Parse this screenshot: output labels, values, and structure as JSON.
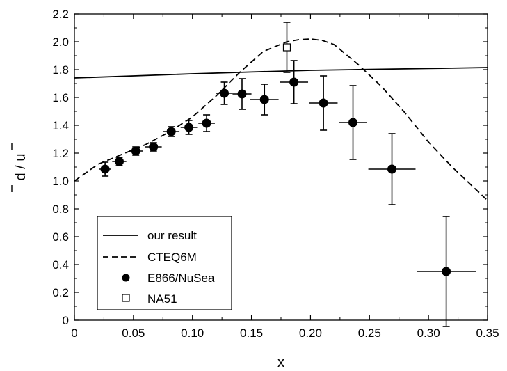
{
  "chart_data": {
    "type": "scatter",
    "xlabel": "x",
    "ylabel": "d / u",
    "xlim": [
      0,
      0.35
    ],
    "ylim": [
      0,
      2.2
    ],
    "x_ticks": [
      "0",
      "0.05",
      "0.10",
      "0.15",
      "0.20",
      "0.25",
      "0.30",
      "0.35"
    ],
    "y_ticks": [
      "0",
      "0.2",
      "0.4",
      "0.6",
      "0.8",
      "1.0",
      "1.2",
      "1.4",
      "1.6",
      "1.8",
      "2.0",
      "2.2"
    ],
    "legend_position": "bottom-left",
    "series": [
      {
        "name": "our result",
        "kind": "line",
        "style": "solid",
        "x": [
          0.0,
          0.05,
          0.1,
          0.15,
          0.2,
          0.25,
          0.3,
          0.35
        ],
        "y": [
          1.74,
          1.755,
          1.77,
          1.783,
          1.795,
          1.802,
          1.808,
          1.815
        ]
      },
      {
        "name": "CTEQ6M",
        "kind": "line",
        "style": "dashed",
        "x": [
          0.0,
          0.02,
          0.04,
          0.06,
          0.08,
          0.1,
          0.12,
          0.14,
          0.16,
          0.18,
          0.19,
          0.2,
          0.21,
          0.22,
          0.24,
          0.26,
          0.28,
          0.3,
          0.32,
          0.35
        ],
        "y": [
          1.0,
          1.12,
          1.19,
          1.26,
          1.35,
          1.46,
          1.61,
          1.78,
          1.93,
          2.0,
          2.015,
          2.02,
          2.01,
          1.98,
          1.84,
          1.68,
          1.49,
          1.28,
          1.1,
          0.86
        ]
      },
      {
        "name": "E866/NuSea",
        "kind": "points",
        "marker": "filled-circle",
        "points": [
          {
            "x": 0.026,
            "y": 1.085,
            "x_err": 0.005,
            "y_err": 0.05
          },
          {
            "x": 0.038,
            "y": 1.14,
            "x_err": 0.006,
            "y_err": 0.03
          },
          {
            "x": 0.052,
            "y": 1.215,
            "x_err": 0.006,
            "y_err": 0.03
          },
          {
            "x": 0.067,
            "y": 1.245,
            "x_err": 0.007,
            "y_err": 0.03
          },
          {
            "x": 0.082,
            "y": 1.355,
            "x_err": 0.007,
            "y_err": 0.035
          },
          {
            "x": 0.097,
            "y": 1.385,
            "x_err": 0.007,
            "y_err": 0.05
          },
          {
            "x": 0.112,
            "y": 1.415,
            "x_err": 0.007,
            "y_err": 0.06
          },
          {
            "x": 0.127,
            "y": 1.63,
            "x_err": 0.007,
            "y_err": 0.08
          },
          {
            "x": 0.142,
            "y": 1.625,
            "x_err": 0.008,
            "y_err": 0.11
          },
          {
            "x": 0.161,
            "y": 1.585,
            "x_err": 0.012,
            "y_err": 0.11
          },
          {
            "x": 0.186,
            "y": 1.71,
            "x_err": 0.012,
            "y_err": 0.155
          },
          {
            "x": 0.211,
            "y": 1.56,
            "x_err": 0.012,
            "y_err": 0.195
          },
          {
            "x": 0.236,
            "y": 1.42,
            "x_err": 0.012,
            "y_err": 0.265
          },
          {
            "x": 0.269,
            "y": 1.085,
            "x_err": 0.02,
            "y_err": 0.255
          },
          {
            "x": 0.315,
            "y": 0.35,
            "x_err": 0.025,
            "y_err": 0.395
          }
        ]
      },
      {
        "name": "NA51",
        "kind": "points",
        "marker": "open-square",
        "points": [
          {
            "x": 0.18,
            "y": 1.96,
            "x_err": 0.0,
            "y_err": 0.18
          }
        ]
      }
    ]
  }
}
